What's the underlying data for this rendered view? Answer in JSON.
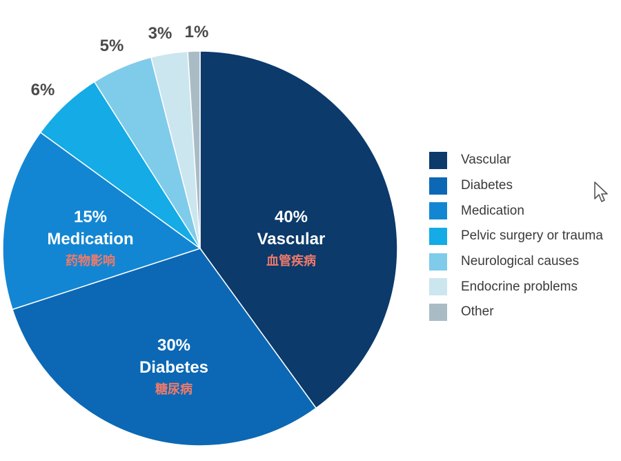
{
  "chart_data": {
    "type": "pie",
    "title": "",
    "categories": [
      "Vascular",
      "Diabetes",
      "Medication",
      "Pelvic surgery or trauma",
      "Neurological causes",
      "Endocrine problems",
      "Other"
    ],
    "values": [
      40,
      30,
      15,
      6,
      5,
      3,
      1
    ],
    "value_labels": [
      "40%",
      "30%",
      "15%",
      "6%",
      "5%",
      "3%",
      "1%"
    ],
    "slice_names": [
      "Vascular",
      "Diabetes",
      "Medication",
      "",
      "",
      "",
      ""
    ],
    "annotations_cn": [
      "血管疾病",
      "糖尿病",
      "药物影响",
      "",
      "",
      "",
      ""
    ],
    "colors": [
      "#0b3a6b",
      "#0c68b4",
      "#1386d3",
      "#14abe6",
      "#7fcbea",
      "#cbe6ef",
      "#a9bcc6"
    ],
    "legend_position": "right"
  },
  "legend": {
    "items": [
      {
        "label": "Vascular",
        "color": "#0b3a6b"
      },
      {
        "label": "Diabetes",
        "color": "#0c68b4"
      },
      {
        "label": "Medication",
        "color": "#1386d3"
      },
      {
        "label": "Pelvic surgery or trauma",
        "color": "#14abe6"
      },
      {
        "label": "Neurological causes",
        "color": "#7fcbea"
      },
      {
        "label": "Endocrine problems",
        "color": "#cbe6ef"
      },
      {
        "label": "Other",
        "color": "#a9bcc6"
      }
    ]
  },
  "cursor": {
    "icon": "mouse-pointer-icon"
  }
}
